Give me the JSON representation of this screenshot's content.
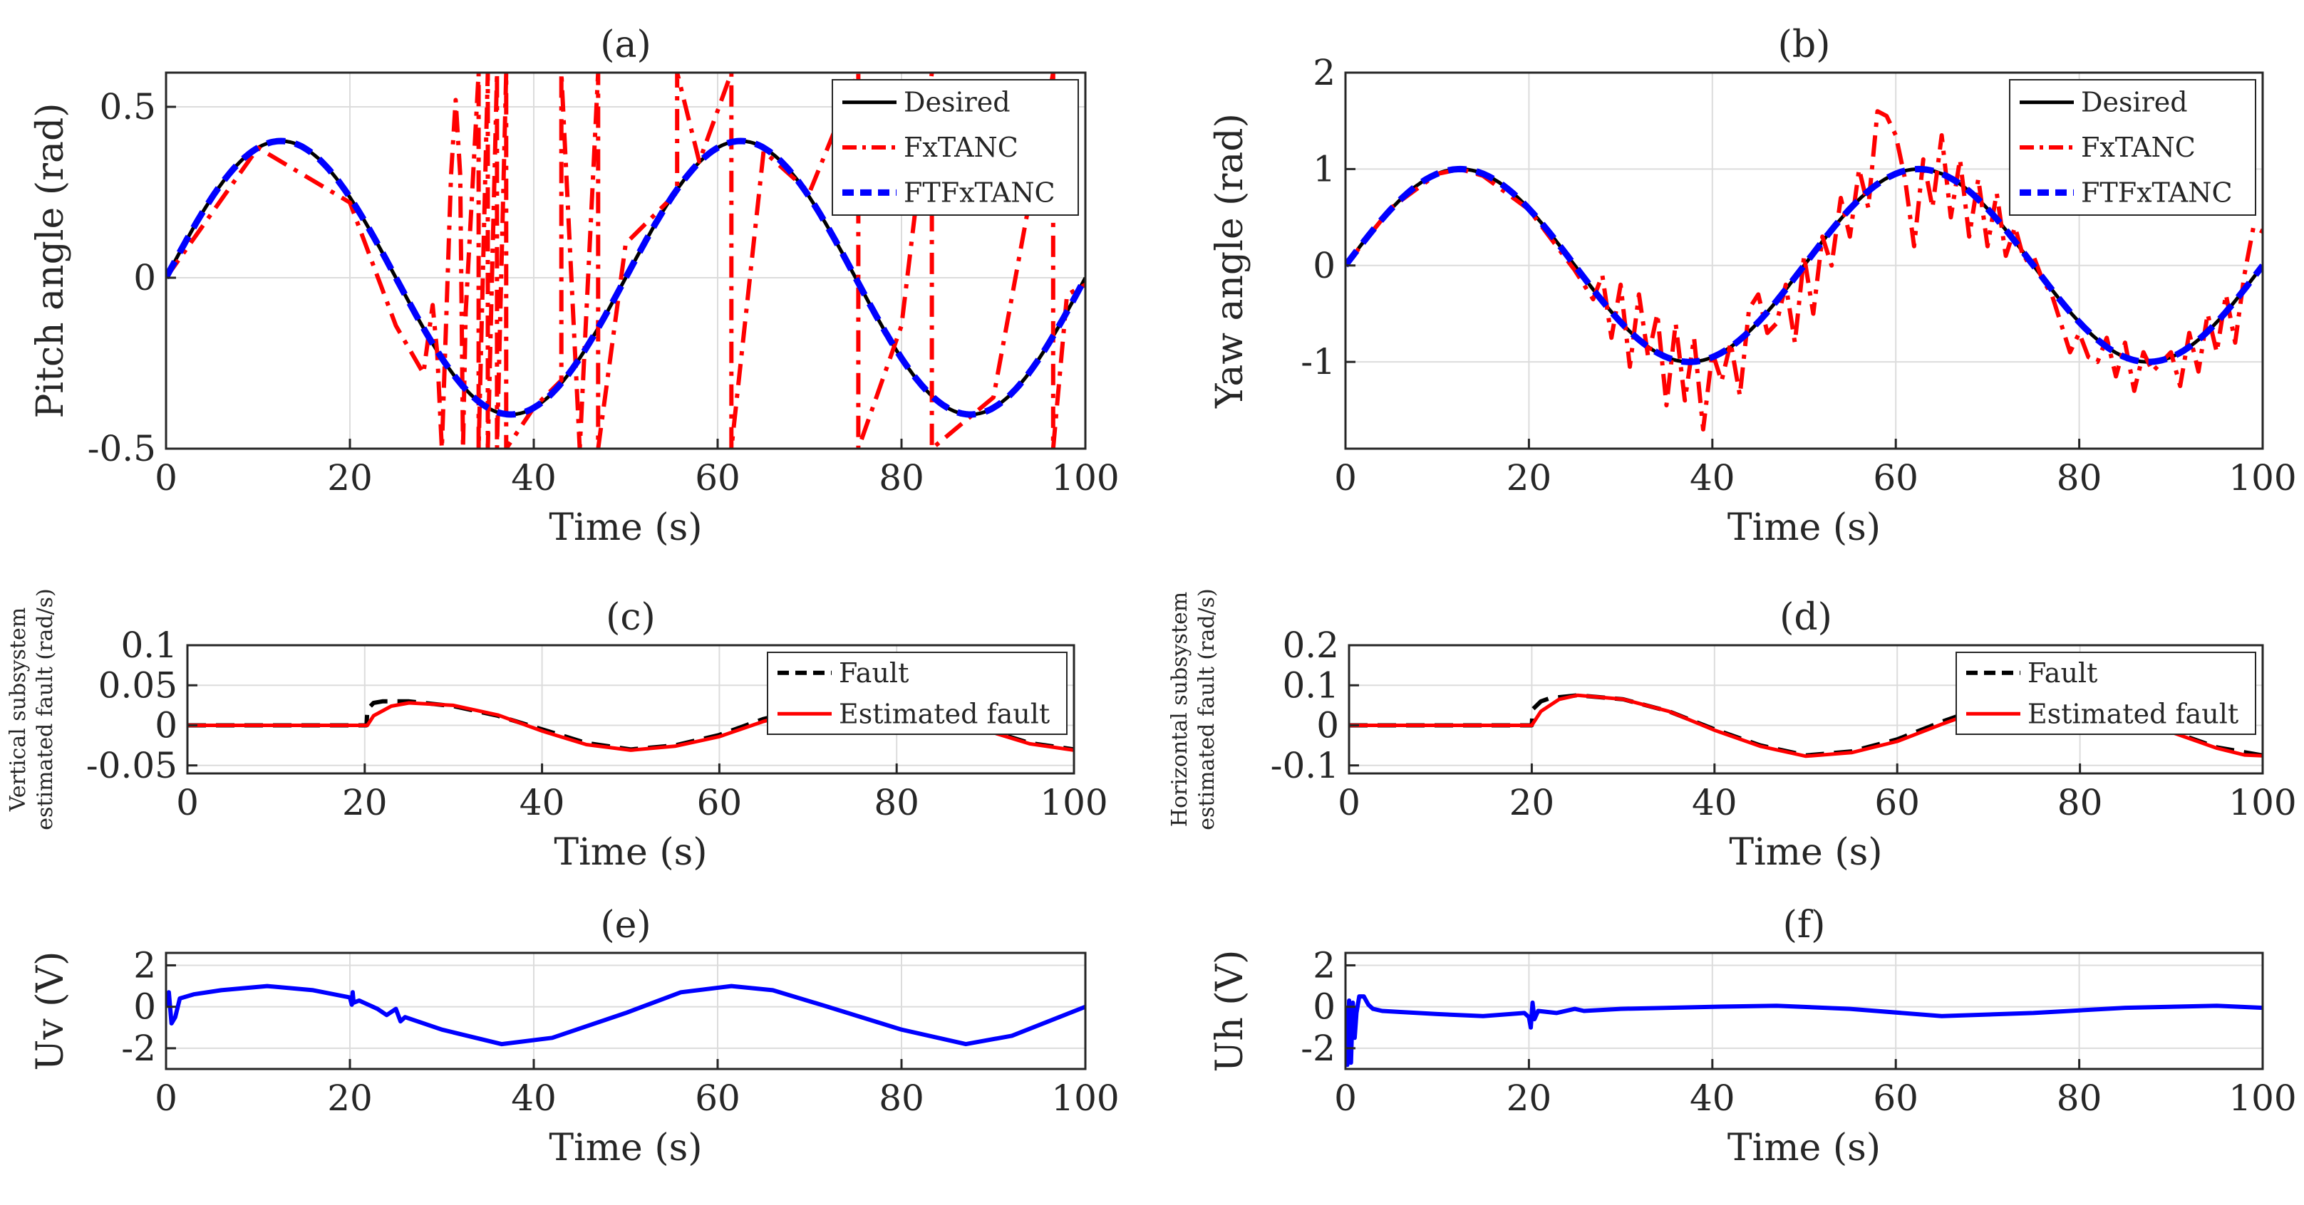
{
  "chart_data": [
    {
      "id": "a",
      "type": "line",
      "title": "(a)",
      "xlabel": "Time (s)",
      "ylabel": "Pitch angle (rad)",
      "xlim": [
        0,
        100
      ],
      "ylim": [
        -0.5,
        0.6
      ],
      "xticks": [
        0,
        20,
        40,
        60,
        80,
        100
      ],
      "yticks": [
        -0.5,
        0,
        0.5
      ],
      "yticklabels": [
        "-0.5",
        "0",
        "0.5"
      ],
      "grid": true,
      "legend": "top-right",
      "series": [
        {
          "name": "Desired",
          "color": "#000000",
          "style": "solid",
          "width": 5,
          "fn": "sin",
          "amp": 0.4,
          "period": 50,
          "x": [
            0,
            100
          ]
        },
        {
          "name": "FxTANC",
          "color": "#ff0000",
          "style": "dashdot",
          "width": 6,
          "x": [
            0,
            10,
            20,
            25,
            28,
            29,
            29.5,
            30,
            30.5,
            31,
            31.5,
            32,
            32.3,
            32.6,
            33,
            34,
            34,
            35,
            35,
            36,
            36,
            37,
            37,
            40,
            43,
            43,
            45,
            47,
            47,
            50,
            55.6,
            55.6,
            58,
            61.5,
            61.5,
            65,
            70,
            75.3,
            75.3,
            80,
            83.3,
            83.3,
            90,
            96.5,
            96.5,
            98,
            100
          ],
          "y": [
            0,
            0.38,
            0.22,
            -0.14,
            -0.28,
            -0.08,
            -0.22,
            -0.5,
            -0.1,
            0.3,
            0.52,
            0.3,
            -0.5,
            -0.1,
            0.1,
            0.6,
            -0.5,
            0.6,
            -0.5,
            0.6,
            -0.5,
            0.6,
            -0.5,
            -0.38,
            -0.3,
            0.6,
            -0.5,
            0.6,
            -0.5,
            0.1,
            0.25,
            0.6,
            0.34,
            0.6,
            -0.5,
            0.37,
            0.25,
            0.6,
            -0.5,
            -0.14,
            0.6,
            -0.5,
            -0.35,
            0.6,
            -0.5,
            -0.05,
            -0.02
          ]
        },
        {
          "name": "FTFxTANC",
          "color": "#0000ff",
          "style": "dashed",
          "width": 9,
          "fn": "sin",
          "amp": 0.4,
          "period": 50,
          "x": [
            0,
            100
          ]
        }
      ]
    },
    {
      "id": "b",
      "type": "line",
      "title": "(b)",
      "xlabel": "Time (s)",
      "ylabel": "Yaw angle (rad)",
      "xlim": [
        0,
        100
      ],
      "ylim": [
        -1.9,
        2
      ],
      "xticks": [
        0,
        20,
        40,
        60,
        80,
        100
      ],
      "yticks": [
        -1,
        0,
        1,
        2
      ],
      "yticklabels": [
        "-1",
        "0",
        "1",
        "2"
      ],
      "grid": true,
      "legend": "top-right",
      "series": [
        {
          "name": "Desired",
          "color": "#000000",
          "style": "solid",
          "width": 5,
          "fn": "sin",
          "amp": 1.0,
          "period": 50,
          "x": [
            0,
            100
          ]
        },
        {
          "name": "FxTANC",
          "color": "#ff0000",
          "style": "dashdot",
          "width": 6,
          "x": [
            0,
            5,
            10,
            12.5,
            15,
            20,
            25,
            27,
            28,
            29,
            30,
            31,
            32,
            33,
            34,
            35,
            36,
            37,
            38,
            39,
            40,
            41,
            42,
            43,
            44,
            45,
            46,
            47,
            48,
            49,
            50,
            51,
            52,
            53,
            54,
            55,
            56,
            57,
            58,
            59,
            60,
            61,
            62,
            63,
            64,
            65,
            66,
            67,
            68,
            69,
            70,
            71,
            72,
            73,
            74,
            75,
            76,
            77,
            78,
            79,
            80,
            81,
            82,
            83,
            84,
            85,
            86,
            87,
            88,
            89,
            90,
            91,
            92,
            93,
            94,
            95,
            96,
            97,
            98,
            99,
            100
          ],
          "y": [
            0,
            0.6,
            0.95,
            1.0,
            0.93,
            0.58,
            -0.05,
            -0.35,
            -0.1,
            -0.75,
            -0.2,
            -1.05,
            -0.3,
            -0.95,
            -0.5,
            -1.45,
            -0.6,
            -1.4,
            -0.75,
            -1.7,
            -0.9,
            -1.2,
            -0.8,
            -1.35,
            -0.45,
            -0.3,
            -0.7,
            -0.6,
            -0.2,
            -0.8,
            0.1,
            -0.5,
            0.3,
            0.0,
            0.7,
            0.3,
            1.0,
            0.6,
            1.6,
            1.55,
            1.35,
            0.9,
            0.2,
            1.1,
            0.6,
            1.35,
            0.5,
            1.1,
            0.3,
            0.9,
            0.2,
            0.75,
            0.1,
            0.4,
            0.05,
            0.1,
            -0.15,
            -0.3,
            -0.6,
            -0.9,
            -0.7,
            -0.95,
            -1.0,
            -0.75,
            -1.15,
            -0.8,
            -1.3,
            -0.9,
            -1.1,
            -1.0,
            -0.9,
            -1.25,
            -0.7,
            -1.1,
            -0.5,
            -0.9,
            -0.3,
            -0.8,
            -0.1,
            0.4,
            0.35
          ]
        },
        {
          "name": "FTFxTANC",
          "color": "#0000ff",
          "style": "dashed",
          "width": 9,
          "fn": "sin",
          "amp": 1.0,
          "period": 50,
          "x": [
            0,
            100
          ]
        }
      ]
    },
    {
      "id": "c",
      "type": "line",
      "title": "(c)",
      "xlabel": "Time (s)",
      "ylabel_lines": [
        "Vertical subsystem",
        "estimated fault (rad/s)"
      ],
      "xlim": [
        0,
        100
      ],
      "ylim": [
        -0.06,
        0.1
      ],
      "xticks": [
        0,
        20,
        40,
        60,
        80,
        100
      ],
      "yticks": [
        -0.05,
        0,
        0.05,
        0.1
      ],
      "yticklabels": [
        "-0.05",
        "0",
        "0.05",
        "0.1"
      ],
      "grid": true,
      "legend": "top-right",
      "series": [
        {
          "name": "Fault",
          "color": "#000000",
          "style": "dashed",
          "width": 6,
          "x": [
            0,
            20.2,
            20.3,
            21,
            22,
            25,
            30,
            35,
            40,
            45,
            50,
            55,
            60,
            65,
            70,
            75,
            80,
            85,
            90,
            95,
            100
          ],
          "y": [
            0,
            0,
            0.02,
            0.028,
            0.03,
            0.03,
            0.024,
            0.012,
            -0.005,
            -0.022,
            -0.03,
            -0.025,
            -0.012,
            0.008,
            0.022,
            0.03,
            0.027,
            0.015,
            -0.005,
            -0.022,
            -0.03
          ]
        },
        {
          "name": "Estimated fault",
          "color": "#ff0000",
          "style": "solid",
          "width": 5,
          "x": [
            0,
            20.3,
            21,
            23,
            25,
            30,
            35,
            40,
            45,
            50,
            55,
            60,
            65,
            70,
            75,
            80,
            85,
            90,
            95,
            100
          ],
          "y": [
            0,
            0,
            0.012,
            0.024,
            0.028,
            0.025,
            0.013,
            -0.007,
            -0.024,
            -0.031,
            -0.026,
            -0.014,
            0.005,
            0.02,
            0.029,
            0.026,
            0.014,
            -0.006,
            -0.023,
            -0.031
          ]
        }
      ]
    },
    {
      "id": "d",
      "type": "line",
      "title": "(d)",
      "xlabel": "Time (s)",
      "ylabel_lines": [
        "Horizontal subsystem",
        "estimated fault (rad/s)"
      ],
      "xlim": [
        0,
        100
      ],
      "ylim": [
        -0.12,
        0.2
      ],
      "xticks": [
        0,
        20,
        40,
        60,
        80,
        100
      ],
      "yticks": [
        -0.1,
        0,
        0.1,
        0.2
      ],
      "yticklabels": [
        "-0.1",
        "0",
        "0.1",
        "0.2"
      ],
      "grid": true,
      "legend": "top-right",
      "series": [
        {
          "name": "Fault",
          "color": "#000000",
          "style": "dashed",
          "width": 6,
          "x": [
            0,
            20,
            20.1,
            21,
            22,
            25,
            30,
            35,
            40,
            45,
            50,
            55,
            60,
            65,
            70,
            75,
            80,
            85,
            90,
            95,
            100
          ],
          "y": [
            0,
            0,
            0.04,
            0.06,
            0.068,
            0.075,
            0.065,
            0.035,
            -0.01,
            -0.05,
            -0.075,
            -0.065,
            -0.035,
            0.01,
            0.05,
            0.075,
            0.065,
            0.03,
            -0.015,
            -0.055,
            -0.075
          ]
        },
        {
          "name": "Estimated fault",
          "color": "#ff0000",
          "style": "solid",
          "width": 5,
          "x": [
            0,
            20,
            21,
            23,
            25,
            30,
            35,
            40,
            45,
            50,
            55,
            60,
            65,
            70,
            75,
            80,
            85,
            90,
            95,
            98,
            100
          ],
          "y": [
            0,
            0,
            0.035,
            0.065,
            0.075,
            0.065,
            0.035,
            -0.012,
            -0.052,
            -0.077,
            -0.068,
            -0.04,
            0.004,
            0.045,
            0.073,
            0.066,
            0.03,
            -0.017,
            -0.057,
            -0.074,
            -0.076
          ]
        }
      ]
    },
    {
      "id": "e",
      "type": "line",
      "title": "(e)",
      "xlabel": "Time (s)",
      "ylabel": "Uv (V)",
      "xlim": [
        0,
        100
      ],
      "ylim": [
        -3,
        2.6
      ],
      "xticks": [
        0,
        20,
        40,
        60,
        80,
        100
      ],
      "yticks": [
        -2,
        0,
        2
      ],
      "yticklabels": [
        "-2",
        "0",
        "2"
      ],
      "grid": true,
      "legend": "none",
      "series": [
        {
          "name": "Uv",
          "color": "#0000ff",
          "style": "solid",
          "width": 6,
          "x": [
            0,
            0.3,
            0.6,
            1,
            1.5,
            3,
            6,
            11,
            16,
            20,
            20.2,
            20.3,
            20.4,
            21,
            23,
            24,
            25,
            25.5,
            26,
            30,
            36.5,
            42,
            50,
            56,
            61.5,
            66,
            72,
            80,
            87,
            92,
            96,
            100
          ],
          "y": [
            0,
            0.7,
            -0.8,
            -0.5,
            0.4,
            0.6,
            0.8,
            1.0,
            0.8,
            0.45,
            0.1,
            0.7,
            0.2,
            0.3,
            -0.1,
            -0.4,
            -0.1,
            -0.7,
            -0.5,
            -1.1,
            -1.8,
            -1.5,
            -0.3,
            0.7,
            1.0,
            0.8,
            0.0,
            -1.1,
            -1.8,
            -1.4,
            -0.7,
            0.0
          ]
        }
      ]
    },
    {
      "id": "f",
      "type": "line",
      "title": "(f)",
      "xlabel": "Time (s)",
      "ylabel": "Uh (V)",
      "xlim": [
        0,
        100
      ],
      "ylim": [
        -3,
        2.6
      ],
      "xticks": [
        0,
        20,
        40,
        60,
        80,
        100
      ],
      "yticks": [
        -2,
        0,
        2
      ],
      "yticklabels": [
        "-2",
        "0",
        "2"
      ],
      "grid": true,
      "legend": "none",
      "series": [
        {
          "name": "Uh",
          "color": "#0000ff",
          "style": "solid",
          "width": 6,
          "x": [
            0,
            0.2,
            0.4,
            0.6,
            0.8,
            1.0,
            1.2,
            1.5,
            2,
            2.5,
            3,
            4,
            6,
            10,
            15,
            19.5,
            20,
            20.2,
            20.4,
            20.6,
            21,
            23,
            25,
            26,
            30,
            40,
            47,
            55,
            65,
            75,
            85,
            95,
            100
          ],
          "y": [
            0,
            -2.8,
            0.3,
            -2.7,
            0.2,
            -1.5,
            -0.3,
            0.5,
            0.5,
            0.1,
            -0.1,
            -0.2,
            -0.25,
            -0.35,
            -0.45,
            -0.3,
            -0.5,
            -1.0,
            0.2,
            -0.6,
            -0.2,
            -0.3,
            -0.1,
            -0.2,
            -0.1,
            0.0,
            0.05,
            -0.1,
            -0.45,
            -0.3,
            -0.05,
            0.05,
            -0.05
          ]
        }
      ]
    }
  ]
}
